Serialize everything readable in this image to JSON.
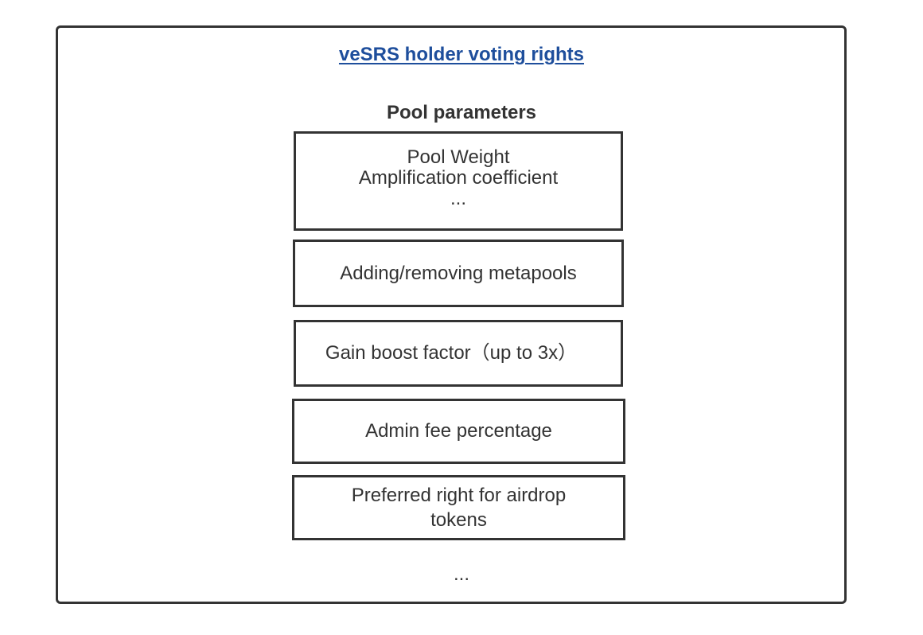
{
  "diagram": {
    "title": "veSRS holder voting rights",
    "subtitle": "Pool parameters",
    "boxes": [
      {
        "lines": [
          "Pool Weight",
          "Amplification coefficient",
          "..."
        ]
      },
      {
        "lines": [
          "Adding/removing metapools"
        ]
      },
      {
        "lines": [
          "Gain boost factor（up to 3x）"
        ]
      },
      {
        "lines": [
          "Admin fee percentage"
        ]
      },
      {
        "lines": [
          "Preferred right for airdrop",
          "tokens"
        ]
      }
    ],
    "trailing_ellipsis": "..."
  }
}
